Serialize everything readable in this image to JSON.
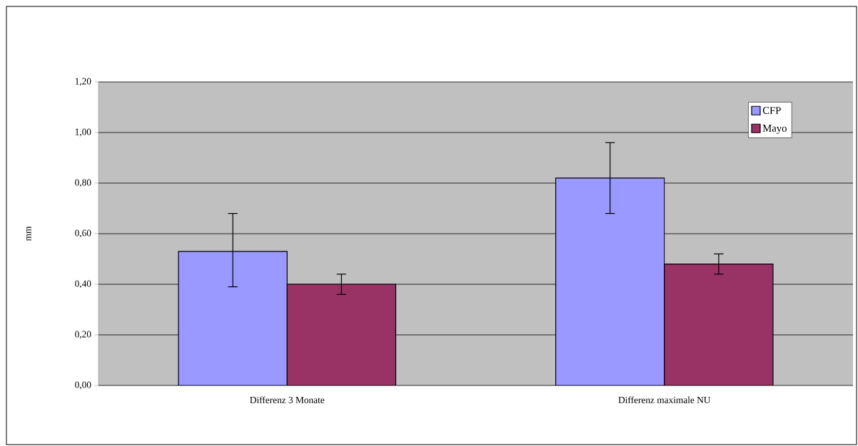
{
  "chart_data": {
    "type": "bar",
    "ylabel": "mm",
    "categories": [
      "Differenz 3 Monate",
      "Differenz maximale NU"
    ],
    "series": [
      {
        "name": "CFP",
        "color": "#9999ff",
        "values": [
          0.53,
          0.82
        ],
        "errors": [
          [
            0.39,
            0.68
          ],
          [
            0.68,
            0.96
          ]
        ]
      },
      {
        "name": "Mayo",
        "color": "#993366",
        "values": [
          0.4,
          0.48
        ],
        "errors": [
          [
            0.36,
            0.44
          ],
          [
            0.44,
            0.52
          ]
        ]
      }
    ],
    "ylim": [
      0,
      1.2
    ],
    "yticks": [
      {
        "value": 0,
        "label": "0,00"
      },
      {
        "value": 0.2,
        "label": "0,20"
      },
      {
        "value": 0.4,
        "label": "0,40"
      },
      {
        "value": 0.6,
        "label": "0,60"
      },
      {
        "value": 0.8,
        "label": "0,80"
      },
      {
        "value": 1.0,
        "label": "1,00"
      },
      {
        "value": 1.2,
        "label": "1,20"
      }
    ],
    "grid": "y",
    "legend": "top right"
  }
}
